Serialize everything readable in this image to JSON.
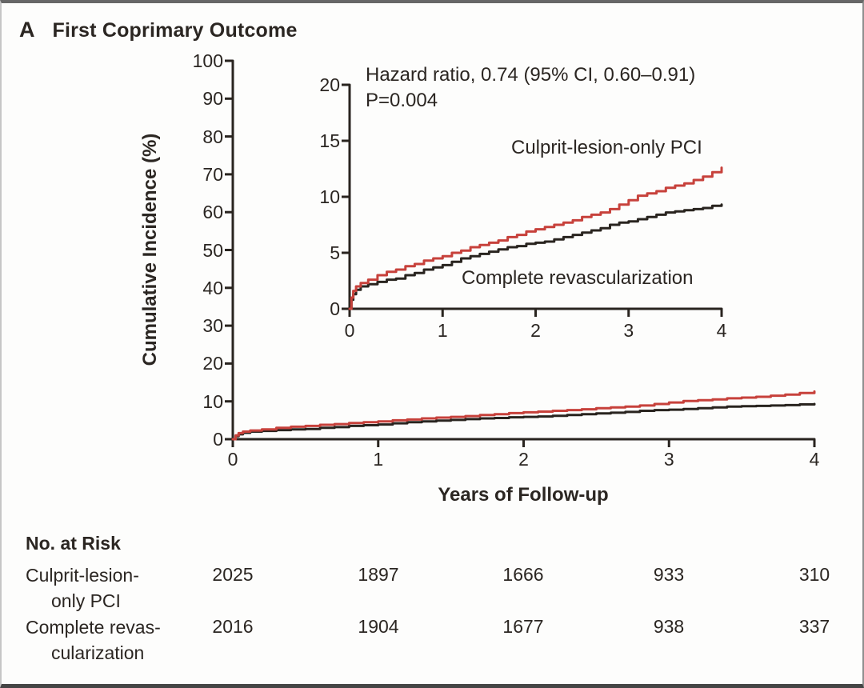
{
  "header": {
    "panel_letter": "A",
    "title": "First Coprimary Outcome"
  },
  "chart_data": {
    "type": "line",
    "title": "A First Coprimary Outcome",
    "xlabel": "Years of Follow-up",
    "ylabel": "Cumulative Incidence (%)",
    "xlim": [
      0,
      4
    ],
    "x_ticks": [
      0,
      1,
      2,
      3,
      4
    ],
    "main_axis": {
      "ylim": [
        0,
        100
      ],
      "y_ticks": [
        0,
        10,
        20,
        30,
        40,
        50,
        60,
        70,
        80,
        90,
        100
      ]
    },
    "inset_axis": {
      "ylim": [
        0,
        20
      ],
      "y_ticks": [
        0,
        5,
        10,
        15,
        20
      ]
    },
    "annotation": {
      "line1": "Hazard ratio, 0.74 (95% CI, 0.60–0.91)",
      "line2": "P=0.004"
    },
    "legend_position": "inline-labels",
    "grid": false,
    "series": [
      {
        "name": "Culprit-lesion-only PCI",
        "color": "#c7413b",
        "points": [
          [
            0,
            0
          ],
          [
            0.02,
            1.0
          ],
          [
            0.04,
            1.6
          ],
          [
            0.07,
            2.0
          ],
          [
            0.12,
            2.3
          ],
          [
            0.2,
            2.6
          ],
          [
            0.3,
            3.0
          ],
          [
            0.4,
            3.3
          ],
          [
            0.5,
            3.5
          ],
          [
            0.6,
            3.8
          ],
          [
            0.7,
            4.0
          ],
          [
            0.8,
            4.3
          ],
          [
            0.9,
            4.5
          ],
          [
            1.0,
            4.7
          ],
          [
            1.1,
            5.0
          ],
          [
            1.2,
            5.2
          ],
          [
            1.3,
            5.5
          ],
          [
            1.4,
            5.7
          ],
          [
            1.5,
            5.9
          ],
          [
            1.6,
            6.1
          ],
          [
            1.7,
            6.4
          ],
          [
            1.8,
            6.6
          ],
          [
            1.9,
            6.9
          ],
          [
            2.0,
            7.1
          ],
          [
            2.1,
            7.3
          ],
          [
            2.2,
            7.5
          ],
          [
            2.3,
            7.7
          ],
          [
            2.4,
            7.9
          ],
          [
            2.5,
            8.2
          ],
          [
            2.6,
            8.4
          ],
          [
            2.7,
            8.6
          ],
          [
            2.8,
            8.9
          ],
          [
            2.9,
            9.3
          ],
          [
            3.0,
            9.7
          ],
          [
            3.1,
            10.1
          ],
          [
            3.2,
            10.3
          ],
          [
            3.3,
            10.5
          ],
          [
            3.4,
            10.8
          ],
          [
            3.5,
            11.0
          ],
          [
            3.6,
            11.2
          ],
          [
            3.7,
            11.5
          ],
          [
            3.8,
            11.8
          ],
          [
            3.9,
            12.2
          ],
          [
            4.0,
            12.6
          ]
        ]
      },
      {
        "name": "Complete revascularization",
        "color": "#29241f",
        "points": [
          [
            0,
            0
          ],
          [
            0.02,
            0.8
          ],
          [
            0.04,
            1.3
          ],
          [
            0.07,
            1.7
          ],
          [
            0.12,
            2.0
          ],
          [
            0.2,
            2.2
          ],
          [
            0.3,
            2.4
          ],
          [
            0.4,
            2.6
          ],
          [
            0.5,
            2.7
          ],
          [
            0.6,
            3.0
          ],
          [
            0.7,
            3.2
          ],
          [
            0.8,
            3.5
          ],
          [
            0.9,
            3.7
          ],
          [
            1.0,
            3.9
          ],
          [
            1.1,
            4.2
          ],
          [
            1.2,
            4.5
          ],
          [
            1.3,
            4.7
          ],
          [
            1.4,
            4.9
          ],
          [
            1.5,
            5.1
          ],
          [
            1.6,
            5.3
          ],
          [
            1.7,
            5.5
          ],
          [
            1.8,
            5.6
          ],
          [
            1.9,
            5.8
          ],
          [
            2.0,
            5.9
          ],
          [
            2.1,
            6.0
          ],
          [
            2.2,
            6.2
          ],
          [
            2.3,
            6.4
          ],
          [
            2.4,
            6.6
          ],
          [
            2.5,
            6.8
          ],
          [
            2.6,
            7.0
          ],
          [
            2.7,
            7.2
          ],
          [
            2.8,
            7.5
          ],
          [
            2.9,
            7.7
          ],
          [
            3.0,
            7.8
          ],
          [
            3.1,
            8.0
          ],
          [
            3.2,
            8.2
          ],
          [
            3.3,
            8.4
          ],
          [
            3.4,
            8.6
          ],
          [
            3.5,
            8.7
          ],
          [
            3.6,
            8.8
          ],
          [
            3.7,
            8.9
          ],
          [
            3.8,
            9.0
          ],
          [
            3.9,
            9.2
          ],
          [
            4.0,
            9.3
          ]
        ]
      }
    ]
  },
  "risk_table": {
    "header": "No. at Risk",
    "rows": [
      {
        "label_line1": "Culprit-lesion-",
        "label_line2": "only PCI",
        "values": [
          "2025",
          "1897",
          "1666",
          "933",
          "310"
        ]
      },
      {
        "label_line1": "Complete revas-",
        "label_line2": "cularization",
        "values": [
          "2016",
          "1904",
          "1677",
          "938",
          "337"
        ]
      }
    ]
  },
  "colors": {
    "curve_red": "#c7413b",
    "curve_black": "#29241f",
    "axis": "#29241f",
    "text": "#2b2622"
  }
}
